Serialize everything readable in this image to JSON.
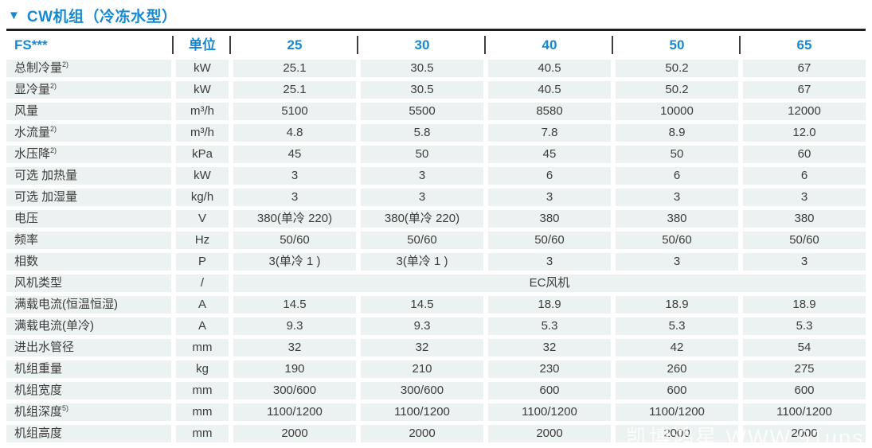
{
  "section": {
    "collapse_icon": "▼",
    "title": "CW机组（冷冻水型）"
  },
  "table": {
    "product_code": "FS***",
    "unit_header": "单位",
    "models": [
      "25",
      "30",
      "40",
      "50",
      "65"
    ],
    "rows": [
      {
        "label": "总制冷量",
        "sup": "2)",
        "unit": "kW",
        "values": [
          "25.1",
          "30.5",
          "40.5",
          "50.2",
          "67"
        ]
      },
      {
        "label": "显冷量",
        "sup": "2)",
        "unit": "kW",
        "values": [
          "25.1",
          "30.5",
          "40.5",
          "50.2",
          "67"
        ]
      },
      {
        "label": "风量",
        "unit": "m³/h",
        "values": [
          "5100",
          "5500",
          "8580",
          "10000",
          "12000"
        ]
      },
      {
        "label": "水流量",
        "sup": "2)",
        "unit": "m³/h",
        "values": [
          "4.8",
          "5.8",
          "7.8",
          "8.9",
          "12.0"
        ]
      },
      {
        "label": "水压降",
        "sup": "2)",
        "unit": "kPa",
        "values": [
          "45",
          "50",
          "45",
          "50",
          "60"
        ]
      },
      {
        "label": "可选 加热量",
        "unit": "kW",
        "values": [
          "3",
          "3",
          "6",
          "6",
          "6"
        ]
      },
      {
        "label": "可选 加湿量",
        "unit": "kg/h",
        "values": [
          "3",
          "3",
          "3",
          "3",
          "3"
        ]
      },
      {
        "label": "电压",
        "unit": "V",
        "values": [
          "380(单冷 220)",
          "380(单冷 220)",
          "380",
          "380",
          "380"
        ]
      },
      {
        "label": "频率",
        "unit": "Hz",
        "values": [
          "50/60",
          "50/60",
          "50/60",
          "50/60",
          "50/60"
        ]
      },
      {
        "label": "相数",
        "unit": "P",
        "values": [
          "3(单冷 1 )",
          "3(单冷 1 )",
          "3",
          "3",
          "3"
        ]
      },
      {
        "label": "风机类型",
        "unit": "/",
        "span_value": "EC风机"
      },
      {
        "label": "满载电流(恒温恒湿)",
        "unit": "A",
        "values": [
          "14.5",
          "14.5",
          "18.9",
          "18.9",
          "18.9"
        ]
      },
      {
        "label": "满载电流(单冷)",
        "unit": "A",
        "values": [
          "9.3",
          "9.3",
          "5.3",
          "5.3",
          "5.3"
        ]
      },
      {
        "label": "进出水管径",
        "unit": "mm",
        "values": [
          "32",
          "32",
          "32",
          "42",
          "54"
        ]
      },
      {
        "label": "机组重量",
        "unit": "kg",
        "values": [
          "190",
          "210",
          "230",
          "260",
          "275"
        ]
      },
      {
        "label": "机组宽度",
        "unit": "mm",
        "values": [
          "300/600",
          "300/600",
          "600",
          "600",
          "600"
        ]
      },
      {
        "label": "机组深度",
        "sup": "5)",
        "unit": "mm",
        "values": [
          "1100/1200",
          "1100/1200",
          "1100/1200",
          "1100/1200",
          "1100/1200"
        ]
      },
      {
        "label": "机组高度",
        "unit": "mm",
        "values": [
          "2000",
          "2000",
          "2000",
          "2000",
          "2000"
        ]
      }
    ]
  },
  "watermark": "凯博鸿星 WWW.91ups.c",
  "colors": {
    "accent_blue": "#1789d2",
    "cell_background": "#ecf2f1",
    "text": "#3c3c3c",
    "top_rule": "#1f1f1f"
  }
}
